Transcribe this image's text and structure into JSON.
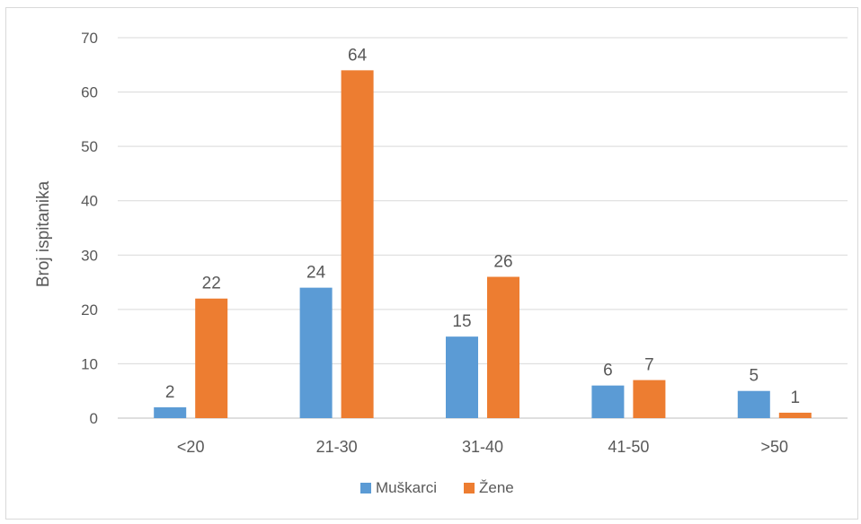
{
  "chart_data": {
    "type": "bar",
    "title": "",
    "xlabel": "",
    "ylabel": "Broj ispitanika",
    "ylim": [
      0,
      70
    ],
    "yticks": [
      0,
      10,
      20,
      30,
      40,
      50,
      60,
      70
    ],
    "grid": true,
    "legend_position": "bottom",
    "categories": [
      "<20",
      "21-30",
      "31-40",
      "41-50",
      ">50"
    ],
    "series": [
      {
        "name": "Muškarci",
        "color": "#5b9bd5",
        "values": [
          2,
          24,
          15,
          6,
          5
        ]
      },
      {
        "name": "Žene",
        "color": "#ed7d31",
        "values": [
          22,
          64,
          26,
          7,
          1
        ]
      }
    ]
  }
}
